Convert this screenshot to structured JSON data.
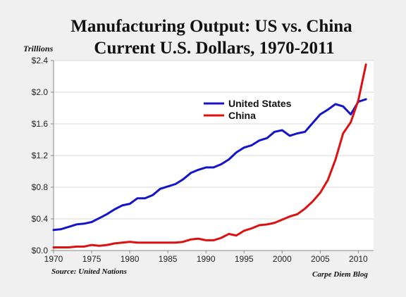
{
  "title_line1": "Manufacturing Output: US vs. China",
  "title_line2": "Current U.S. Dollars, 1970-2011",
  "yaxis_unit": "Trillions",
  "source": "Source: United Nations",
  "credit": "Carpe Diem Blog",
  "chart_data": {
    "type": "line",
    "title": "Manufacturing Output: US vs. China — Current U.S. Dollars, 1970-2011",
    "ylabel": "Trillions",
    "xlim": [
      1970,
      2012
    ],
    "ylim": [
      0,
      2.4
    ],
    "grid": "horizontal",
    "legend_position": "upper-center",
    "x_ticks": [
      1970,
      1975,
      1980,
      1985,
      1990,
      1995,
      2000,
      2005,
      2010
    ],
    "y_ticks": [
      0,
      0.4,
      0.8,
      1.2,
      1.6,
      2.0,
      2.4
    ],
    "y_tick_labels": [
      "$0.0",
      "$0.4",
      "$0.8",
      "$1.2",
      "$1.6",
      "$2.0",
      "$2.4"
    ],
    "x": [
      1970,
      1971,
      1972,
      1973,
      1974,
      1975,
      1976,
      1977,
      1978,
      1979,
      1980,
      1981,
      1982,
      1983,
      1984,
      1985,
      1986,
      1987,
      1988,
      1989,
      1990,
      1991,
      1992,
      1993,
      1994,
      1995,
      1996,
      1997,
      1998,
      1999,
      2000,
      2001,
      2002,
      2003,
      2004,
      2005,
      2006,
      2007,
      2008,
      2009,
      2010,
      2011
    ],
    "series": [
      {
        "name": "United States",
        "color": "#1414c8",
        "values": [
          0.26,
          0.27,
          0.3,
          0.33,
          0.34,
          0.36,
          0.41,
          0.46,
          0.52,
          0.57,
          0.59,
          0.66,
          0.66,
          0.7,
          0.78,
          0.81,
          0.84,
          0.9,
          0.98,
          1.02,
          1.05,
          1.05,
          1.09,
          1.15,
          1.24,
          1.3,
          1.33,
          1.39,
          1.42,
          1.5,
          1.52,
          1.45,
          1.48,
          1.5,
          1.61,
          1.72,
          1.78,
          1.85,
          1.82,
          1.72,
          1.88,
          1.91
        ]
      },
      {
        "name": "China",
        "color": "#dd1111",
        "values": [
          0.04,
          0.04,
          0.04,
          0.05,
          0.05,
          0.07,
          0.06,
          0.07,
          0.09,
          0.1,
          0.11,
          0.1,
          0.1,
          0.1,
          0.1,
          0.1,
          0.1,
          0.11,
          0.14,
          0.15,
          0.13,
          0.13,
          0.16,
          0.21,
          0.19,
          0.25,
          0.28,
          0.32,
          0.33,
          0.35,
          0.39,
          0.43,
          0.46,
          0.53,
          0.62,
          0.73,
          0.89,
          1.15,
          1.48,
          1.62,
          1.9,
          2.35
        ]
      }
    ]
  }
}
